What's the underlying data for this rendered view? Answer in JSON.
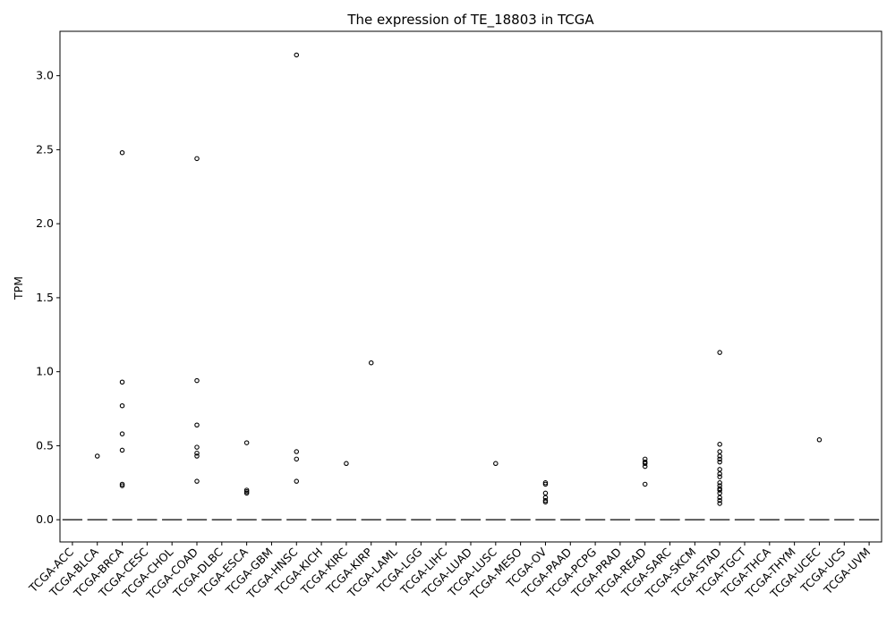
{
  "chart_data": {
    "type": "box",
    "title": "The expression of TE_18803 in TCGA",
    "xlabel": "",
    "ylabel": "TPM",
    "ylim": [
      -0.15,
      3.3
    ],
    "yticks": [
      "0.0",
      "0.5",
      "1.0",
      "1.5",
      "2.0",
      "2.5",
      "3.0"
    ],
    "categories": [
      "TCGA-ACC",
      "TCGA-BLCA",
      "TCGA-BRCA",
      "TCGA-CESC",
      "TCGA-CHOL",
      "TCGA-COAD",
      "TCGA-DLBC",
      "TCGA-ESCA",
      "TCGA-GBM",
      "TCGA-HNSC",
      "TCGA-KICH",
      "TCGA-KIRC",
      "TCGA-KIRP",
      "TCGA-LAML",
      "TCGA-LGG",
      "TCGA-LIHC",
      "TCGA-LUAD",
      "TCGA-LUSC",
      "TCGA-MESO",
      "TCGA-OV",
      "TCGA-PAAD",
      "TCGA-PCPG",
      "TCGA-PRAD",
      "TCGA-READ",
      "TCGA-SARC",
      "TCGA-SKCM",
      "TCGA-STAD",
      "TCGA-TGCT",
      "TCGA-THCA",
      "TCGA-THYM",
      "TCGA-UCEC",
      "TCGA-UCS",
      "TCGA-UVM"
    ],
    "median": 0,
    "outliers": [
      {
        "category": "TCGA-BLCA",
        "values": [
          0.43
        ]
      },
      {
        "category": "TCGA-BRCA",
        "values": [
          2.48,
          0.93,
          0.77,
          0.58,
          0.47,
          0.24,
          0.23
        ]
      },
      {
        "category": "TCGA-COAD",
        "values": [
          2.44,
          0.94,
          0.64,
          0.49,
          0.45,
          0.43,
          0.26
        ]
      },
      {
        "category": "TCGA-ESCA",
        "values": [
          0.52,
          0.2,
          0.19,
          0.18
        ]
      },
      {
        "category": "TCGA-HNSC",
        "values": [
          3.14,
          0.46,
          0.41,
          0.26
        ]
      },
      {
        "category": "TCGA-KIRC",
        "values": [
          0.38
        ]
      },
      {
        "category": "TCGA-KIRP",
        "values": [
          1.06
        ]
      },
      {
        "category": "TCGA-LUSC",
        "values": [
          0.38
        ]
      },
      {
        "category": "TCGA-OV",
        "values": [
          0.25,
          0.24,
          0.18,
          0.15,
          0.13,
          0.12
        ]
      },
      {
        "category": "TCGA-READ",
        "values": [
          0.41,
          0.39,
          0.38,
          0.36,
          0.24
        ]
      },
      {
        "category": "TCGA-STAD",
        "values": [
          1.13,
          0.51,
          0.46,
          0.43,
          0.41,
          0.39,
          0.34,
          0.31,
          0.29,
          0.25,
          0.23,
          0.21,
          0.2,
          0.18,
          0.15,
          0.13,
          0.11
        ]
      },
      {
        "category": "TCGA-UCEC",
        "values": [
          0.54
        ]
      }
    ],
    "colors": {
      "median_line": "#3f3f3f",
      "marker_edge": "#000000",
      "axis": "#000000"
    }
  }
}
